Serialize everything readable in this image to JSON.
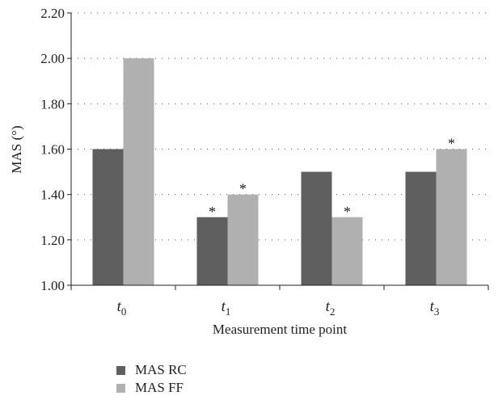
{
  "chart_data": {
    "type": "bar",
    "title": "",
    "xlabel": "Measurement time point",
    "ylabel": "MAS (°)",
    "ylim": [
      1.0,
      2.2
    ],
    "yticks": [
      "1.00",
      "1.20",
      "1.40",
      "1.60",
      "1.80",
      "2.00",
      "2.20"
    ],
    "categories": [
      {
        "base": "t",
        "sub": "0"
      },
      {
        "base": "t",
        "sub": "1"
      },
      {
        "base": "t",
        "sub": "2"
      },
      {
        "base": "t",
        "sub": "3"
      }
    ],
    "series": [
      {
        "name": "MAS RC",
        "color": "#5f5f5f",
        "values": [
          1.6,
          1.3,
          1.5,
          1.5
        ],
        "marks": [
          "",
          "*",
          "",
          ""
        ]
      },
      {
        "name": "MAS FF",
        "color": "#b0b0b0",
        "values": [
          2.0,
          1.4,
          1.3,
          1.6
        ],
        "marks": [
          "",
          "*",
          "*",
          "*"
        ]
      }
    ],
    "grid": true,
    "legend_position": "bottom-left"
  }
}
